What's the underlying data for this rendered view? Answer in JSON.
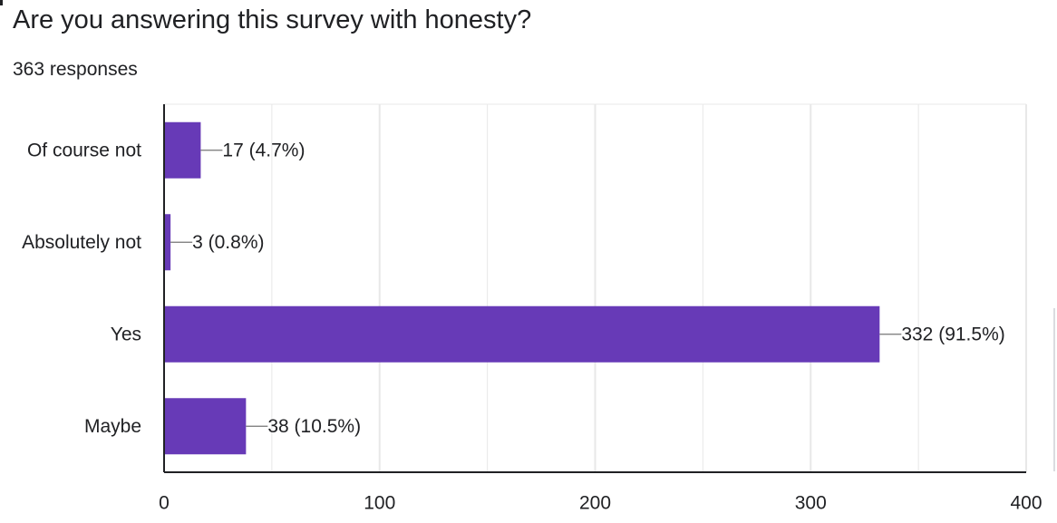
{
  "header": {
    "title": "Are you answering this survey with honesty?",
    "responses": "363 responses"
  },
  "colors": {
    "bar": "#673ab7",
    "grid": "#e8e8e8",
    "axis": "#202124",
    "leader": "#757575"
  },
  "chart_data": {
    "type": "bar",
    "orientation": "horizontal",
    "title": "Are you answering this survey with honesty?",
    "subtitle": "363 responses",
    "categories": [
      "Of course not",
      "Absolutely not",
      "Yes",
      "Maybe"
    ],
    "values": [
      17,
      3,
      332,
      38
    ],
    "data_labels": [
      "17 (4.7%)",
      "3 (0.8%)",
      "332 (91.5%)",
      "38 (10.5%)"
    ],
    "xlim": [
      0,
      400
    ],
    "xticks": [
      0,
      100,
      200,
      300,
      400
    ],
    "xtick_labels": [
      "0",
      "100",
      "200",
      "300",
      "400"
    ],
    "grid": true,
    "legend": "none"
  }
}
